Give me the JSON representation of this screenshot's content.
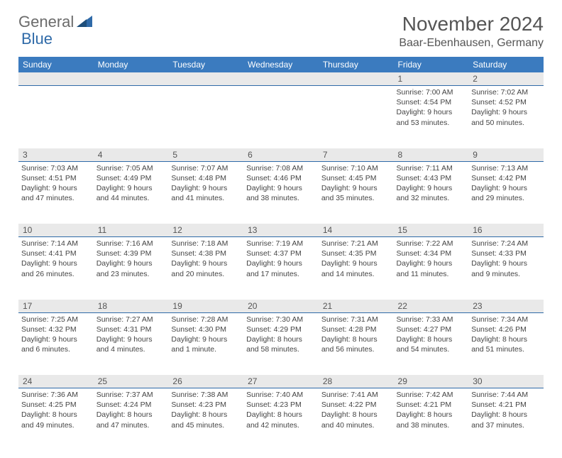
{
  "brand": {
    "part1": "General",
    "part2": "Blue"
  },
  "title": "November 2024",
  "location": "Baar-Ebenhausen, Germany",
  "colors": {
    "header_bg": "#3b7bbf",
    "header_text": "#ffffff",
    "row_divider": "#2f6aa8",
    "daynum_bg": "#e9e9e9",
    "text": "#444444",
    "title_text": "#555555",
    "brand_gray": "#6b6b6b",
    "brand_blue": "#2f6aa8",
    "page_bg": "#ffffff"
  },
  "weekdays": [
    "Sunday",
    "Monday",
    "Tuesday",
    "Wednesday",
    "Thursday",
    "Friday",
    "Saturday"
  ],
  "weeks": [
    [
      null,
      null,
      null,
      null,
      null,
      {
        "n": "1",
        "sr": "7:00 AM",
        "ss": "4:54 PM",
        "dl": "9 hours and 53 minutes."
      },
      {
        "n": "2",
        "sr": "7:02 AM",
        "ss": "4:52 PM",
        "dl": "9 hours and 50 minutes."
      }
    ],
    [
      {
        "n": "3",
        "sr": "7:03 AM",
        "ss": "4:51 PM",
        "dl": "9 hours and 47 minutes."
      },
      {
        "n": "4",
        "sr": "7:05 AM",
        "ss": "4:49 PM",
        "dl": "9 hours and 44 minutes."
      },
      {
        "n": "5",
        "sr": "7:07 AM",
        "ss": "4:48 PM",
        "dl": "9 hours and 41 minutes."
      },
      {
        "n": "6",
        "sr": "7:08 AM",
        "ss": "4:46 PM",
        "dl": "9 hours and 38 minutes."
      },
      {
        "n": "7",
        "sr": "7:10 AM",
        "ss": "4:45 PM",
        "dl": "9 hours and 35 minutes."
      },
      {
        "n": "8",
        "sr": "7:11 AM",
        "ss": "4:43 PM",
        "dl": "9 hours and 32 minutes."
      },
      {
        "n": "9",
        "sr": "7:13 AM",
        "ss": "4:42 PM",
        "dl": "9 hours and 29 minutes."
      }
    ],
    [
      {
        "n": "10",
        "sr": "7:14 AM",
        "ss": "4:41 PM",
        "dl": "9 hours and 26 minutes."
      },
      {
        "n": "11",
        "sr": "7:16 AM",
        "ss": "4:39 PM",
        "dl": "9 hours and 23 minutes."
      },
      {
        "n": "12",
        "sr": "7:18 AM",
        "ss": "4:38 PM",
        "dl": "9 hours and 20 minutes."
      },
      {
        "n": "13",
        "sr": "7:19 AM",
        "ss": "4:37 PM",
        "dl": "9 hours and 17 minutes."
      },
      {
        "n": "14",
        "sr": "7:21 AM",
        "ss": "4:35 PM",
        "dl": "9 hours and 14 minutes."
      },
      {
        "n": "15",
        "sr": "7:22 AM",
        "ss": "4:34 PM",
        "dl": "9 hours and 11 minutes."
      },
      {
        "n": "16",
        "sr": "7:24 AM",
        "ss": "4:33 PM",
        "dl": "9 hours and 9 minutes."
      }
    ],
    [
      {
        "n": "17",
        "sr": "7:25 AM",
        "ss": "4:32 PM",
        "dl": "9 hours and 6 minutes."
      },
      {
        "n": "18",
        "sr": "7:27 AM",
        "ss": "4:31 PM",
        "dl": "9 hours and 4 minutes."
      },
      {
        "n": "19",
        "sr": "7:28 AM",
        "ss": "4:30 PM",
        "dl": "9 hours and 1 minute."
      },
      {
        "n": "20",
        "sr": "7:30 AM",
        "ss": "4:29 PM",
        "dl": "8 hours and 58 minutes."
      },
      {
        "n": "21",
        "sr": "7:31 AM",
        "ss": "4:28 PM",
        "dl": "8 hours and 56 minutes."
      },
      {
        "n": "22",
        "sr": "7:33 AM",
        "ss": "4:27 PM",
        "dl": "8 hours and 54 minutes."
      },
      {
        "n": "23",
        "sr": "7:34 AM",
        "ss": "4:26 PM",
        "dl": "8 hours and 51 minutes."
      }
    ],
    [
      {
        "n": "24",
        "sr": "7:36 AM",
        "ss": "4:25 PM",
        "dl": "8 hours and 49 minutes."
      },
      {
        "n": "25",
        "sr": "7:37 AM",
        "ss": "4:24 PM",
        "dl": "8 hours and 47 minutes."
      },
      {
        "n": "26",
        "sr": "7:38 AM",
        "ss": "4:23 PM",
        "dl": "8 hours and 45 minutes."
      },
      {
        "n": "27",
        "sr": "7:40 AM",
        "ss": "4:23 PM",
        "dl": "8 hours and 42 minutes."
      },
      {
        "n": "28",
        "sr": "7:41 AM",
        "ss": "4:22 PM",
        "dl": "8 hours and 40 minutes."
      },
      {
        "n": "29",
        "sr": "7:42 AM",
        "ss": "4:21 PM",
        "dl": "8 hours and 38 minutes."
      },
      {
        "n": "30",
        "sr": "7:44 AM",
        "ss": "4:21 PM",
        "dl": "8 hours and 37 minutes."
      }
    ]
  ],
  "labels": {
    "sunrise": "Sunrise: ",
    "sunset": "Sunset: ",
    "daylight": "Daylight: "
  }
}
